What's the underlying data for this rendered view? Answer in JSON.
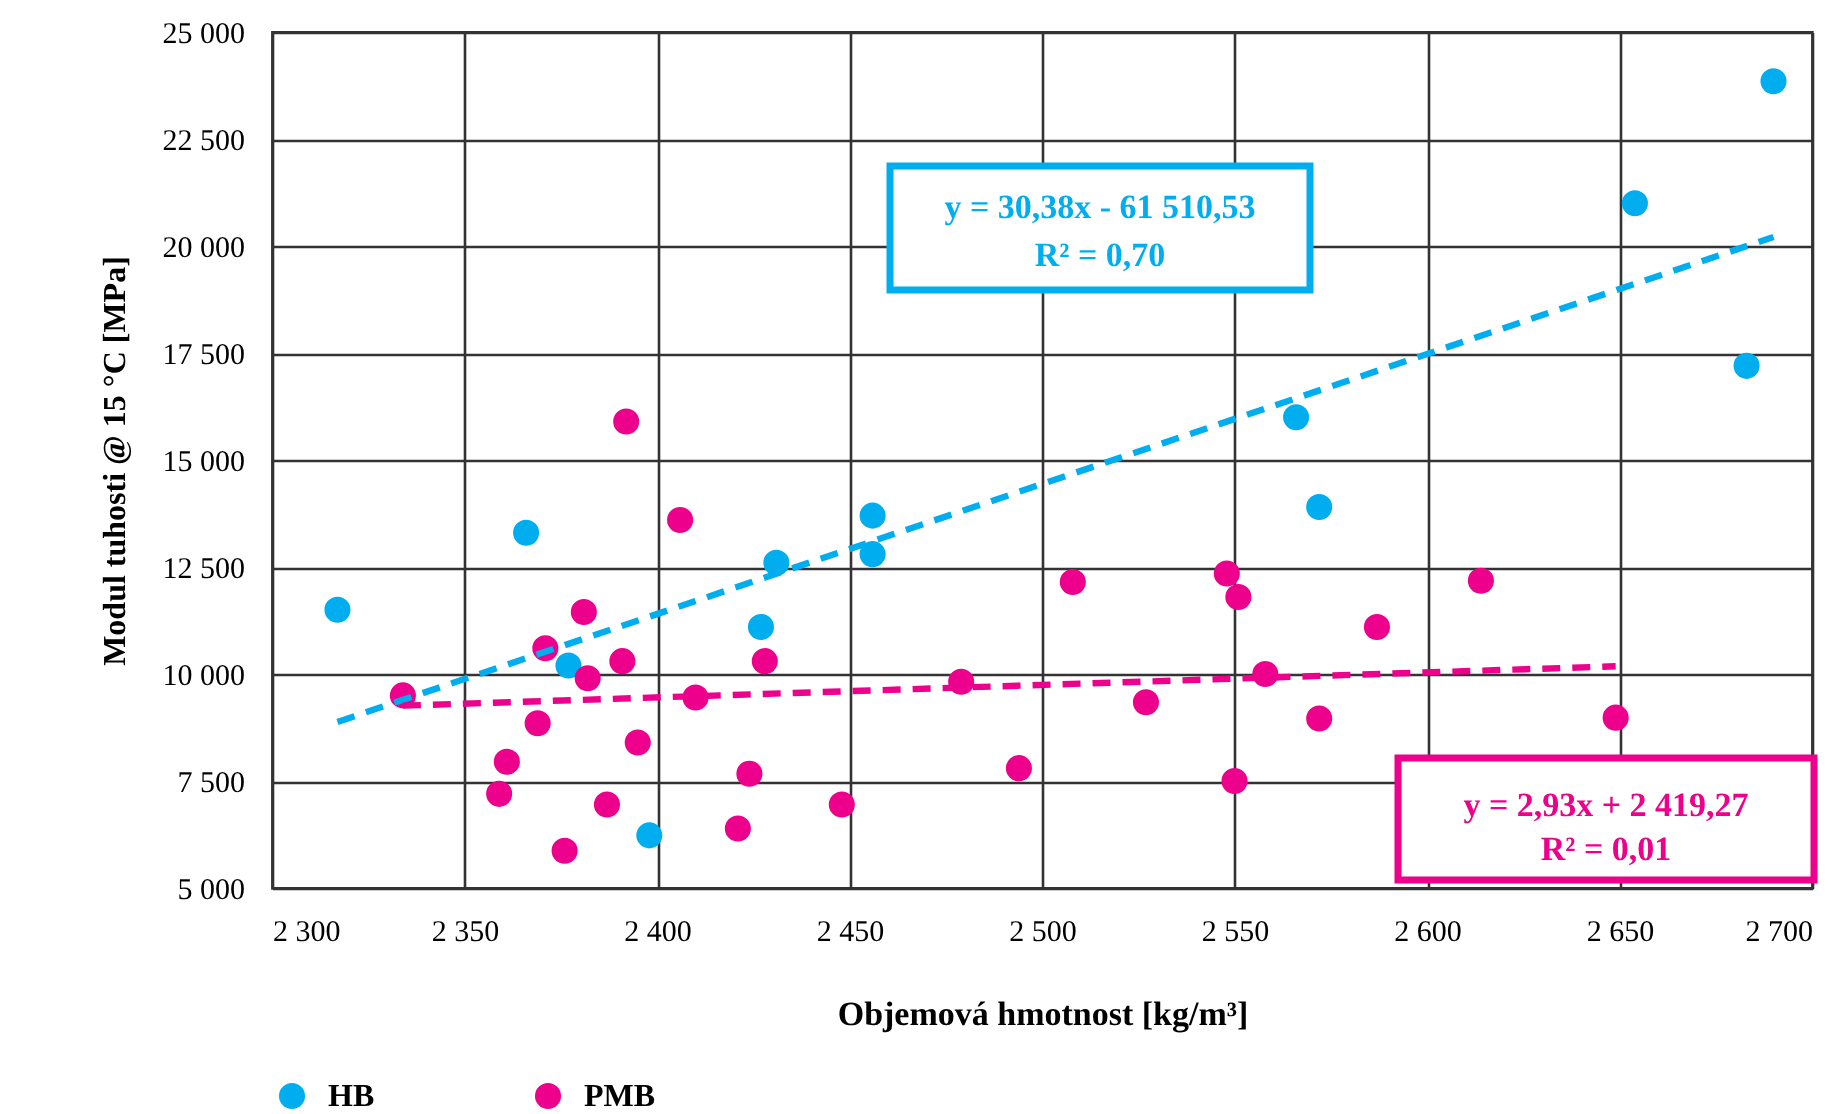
{
  "chart_data": {
    "type": "scatter",
    "xlabel": "Objemová hmotnost [kg/m³]",
    "ylabel": "Modul tuhosti @ 15 °C [MPa]",
    "xlim": [
      2300,
      2700
    ],
    "ylim": [
      5000,
      25000
    ],
    "xticks": [
      {
        "value": 2300,
        "label": "2 300"
      },
      {
        "value": 2350,
        "label": "2 350"
      },
      {
        "value": 2400,
        "label": "2 400"
      },
      {
        "value": 2450,
        "label": "2 450"
      },
      {
        "value": 2500,
        "label": "2 500"
      },
      {
        "value": 2550,
        "label": "2 550"
      },
      {
        "value": 2600,
        "label": "2 600"
      },
      {
        "value": 2650,
        "label": "2 650"
      },
      {
        "value": 2700,
        "label": "2 700"
      }
    ],
    "yticks": [
      {
        "value": 5000,
        "label": "5 000"
      },
      {
        "value": 7500,
        "label": "7 500"
      },
      {
        "value": 10000,
        "label": "10 000"
      },
      {
        "value": 12500,
        "label": "12 500"
      },
      {
        "value": 15000,
        "label": "15 000"
      },
      {
        "value": 17500,
        "label": "17 500"
      },
      {
        "value": 20000,
        "label": "20 000"
      },
      {
        "value": 22500,
        "label": "22 500"
      },
      {
        "value": 25000,
        "label": "25 000"
      }
    ],
    "grid": true,
    "legend": "bottom left",
    "marker": "circle",
    "series": [
      {
        "name": "HB",
        "color": "#00aeef",
        "x": [
          2317,
          2366,
          2377,
          2398,
          2427,
          2431,
          2456,
          2456,
          2566,
          2572,
          2654,
          2683,
          2690
        ],
        "values": [
          11500,
          13300,
          10200,
          6230,
          11100,
          12600,
          13700,
          12800,
          16000,
          13900,
          21000,
          17200,
          23850
        ]
      },
      {
        "name": "PMB",
        "color": "#ec008c",
        "x": [
          2334,
          2359,
          2361,
          2369,
          2371,
          2376,
          2381,
          2382,
          2387,
          2391,
          2392,
          2395,
          2406,
          2410,
          2421,
          2424,
          2428,
          2448,
          2479,
          2494,
          2508,
          2527,
          2548,
          2550,
          2551,
          2558,
          2572,
          2587,
          2614,
          2649
        ],
        "values": [
          9500,
          7200,
          7950,
          8850,
          10600,
          5870,
          11450,
          9900,
          6950,
          10300,
          15900,
          8400,
          13600,
          9450,
          6390,
          7670,
          10300,
          6950,
          9820,
          7800,
          12150,
          9340,
          12350,
          7500,
          11800,
          10000,
          8960,
          11100,
          12180,
          8980
        ]
      },
      {
        "type": "line",
        "color": "#00aeef",
        "line_style": "dashed",
        "marker": "none",
        "x": [
          2317,
          2690
        ],
        "values": [
          8880,
          20210
        ]
      },
      {
        "type": "line",
        "color": "#ec008c",
        "line_style": "dashed",
        "marker": "none",
        "x": [
          2334,
          2649
        ],
        "values": [
          9260,
          10180
        ]
      }
    ],
    "annotations": [
      "y = 30,38x - 61 510,53",
      "R² = 0,70",
      "y = 2,93x + 2 419,27",
      "R² = 0,01"
    ]
  }
}
